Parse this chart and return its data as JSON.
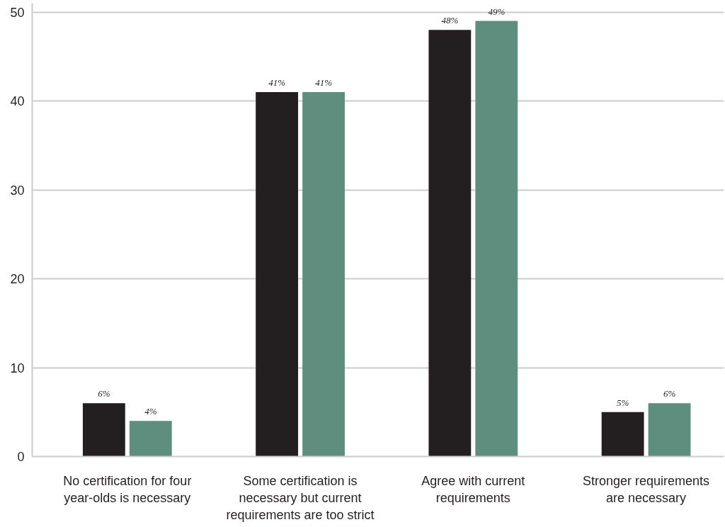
{
  "chart_data": {
    "type": "bar",
    "categories": [
      "No certification for four year-olds is necessary",
      "Some certification is necessary but current requirements are too strict",
      "Agree with current requirements",
      "Stronger requirements are necessary"
    ],
    "series": [
      {
        "color": "#231f20",
        "values": [
          6,
          41,
          48,
          5
        ],
        "value_labels": [
          "6%",
          "41%",
          "48%",
          "5%"
        ]
      },
      {
        "color": "#5e8f7e",
        "values": [
          4,
          41,
          49,
          6
        ],
        "value_labels": [
          "4%",
          "41%",
          "49%",
          "6%"
        ]
      }
    ],
    "ylim": [
      0,
      51
    ],
    "yticks": [
      0,
      10,
      20,
      30,
      40,
      50
    ],
    "grid": "y"
  }
}
